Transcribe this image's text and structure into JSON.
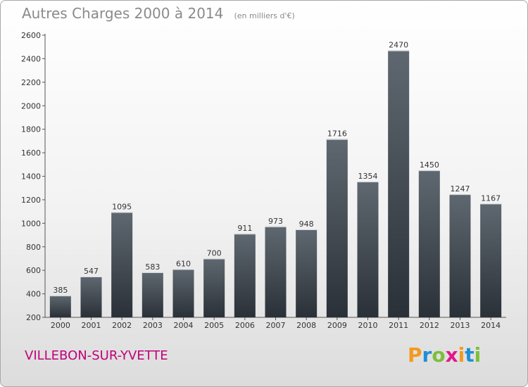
{
  "header": {
    "title": "Autres Charges 2000 à 2014",
    "subtitle": "(en milliers d'€)"
  },
  "footer": {
    "city": "VILLEBON-SUR-YVETTE",
    "logo_text": "Proxiti"
  },
  "colors": {
    "bar_top": "#5f6870",
    "bar_bottom": "#2a3038",
    "city": "#c0007a",
    "logo_letters": [
      "#f39a1e",
      "#1f8fd6",
      "#7cbf3a",
      "#e3178b",
      "#f39a1e",
      "#1f8fd6",
      "#7cbf3a"
    ]
  },
  "chart_data": {
    "type": "bar",
    "title": "Autres Charges 2000 à 2014",
    "subtitle": "(en milliers d'€)",
    "categories": [
      "2000",
      "2001",
      "2002",
      "2003",
      "2004",
      "2005",
      "2006",
      "2007",
      "2008",
      "2009",
      "2010",
      "2011",
      "2012",
      "2013",
      "2014"
    ],
    "values": [
      385,
      547,
      1095,
      583,
      610,
      700,
      911,
      973,
      948,
      1716,
      1354,
      2470,
      1450,
      1247,
      1167
    ],
    "ylim": [
      200,
      2600
    ],
    "yticks": [
      200,
      400,
      600,
      800,
      1000,
      1200,
      1400,
      1600,
      1800,
      2000,
      2200,
      2400,
      2600
    ],
    "grid": false,
    "legend": "none"
  }
}
